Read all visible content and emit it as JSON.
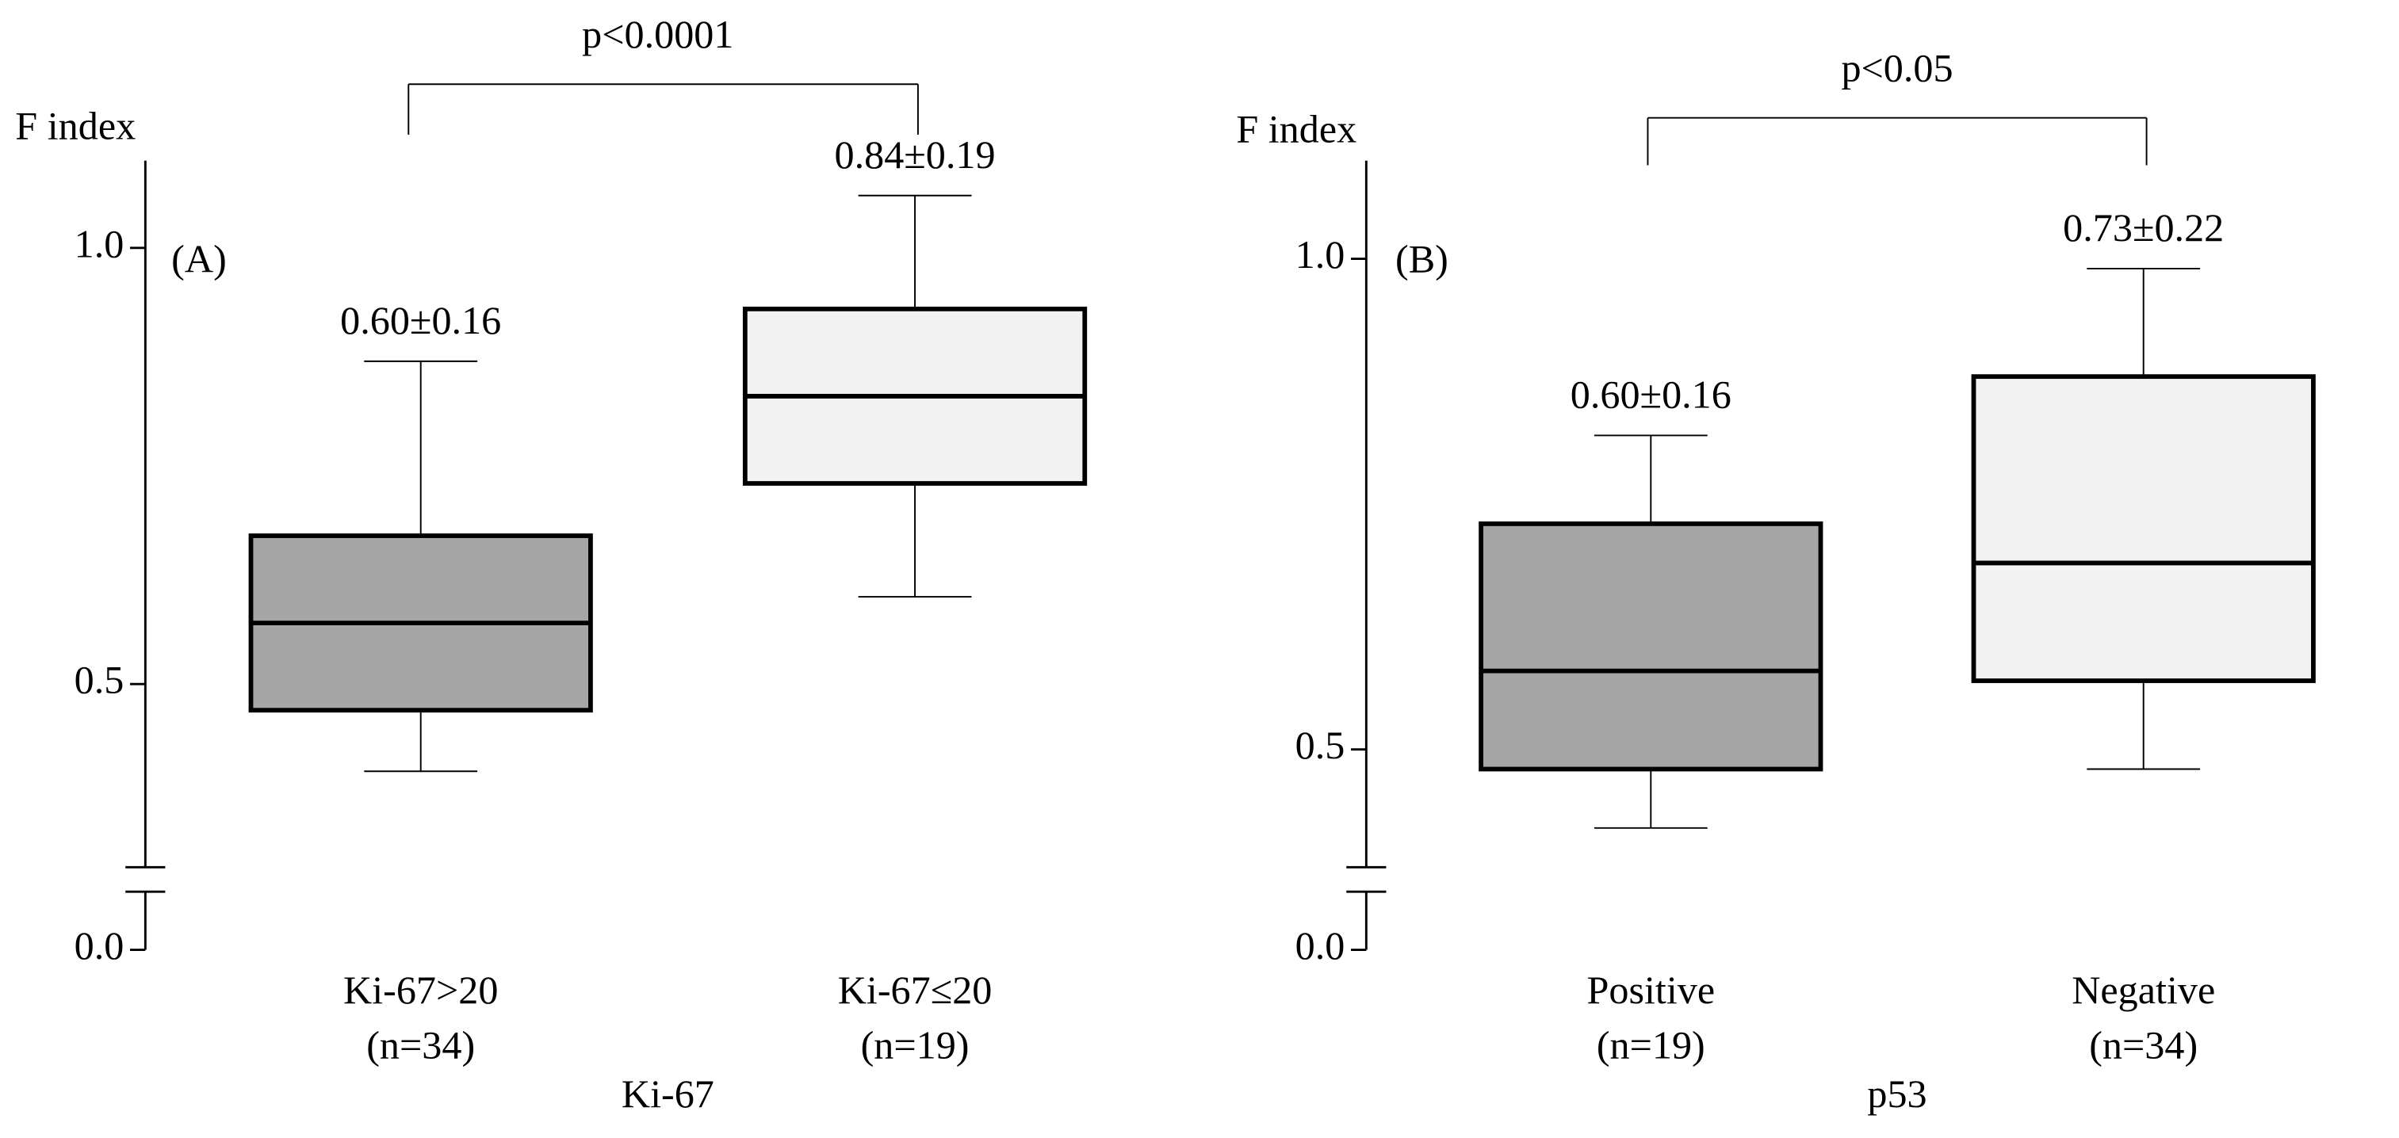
{
  "chart_data": [
    {
      "type": "box",
      "panel_label": "(A)",
      "y_label": "F index",
      "x_label": "Ki-67",
      "categories": [
        "Ki-67>20",
        "Ki-67≤20"
      ],
      "category_notes": [
        "(n=34)",
        "(n=19)"
      ],
      "boxes": [
        {
          "low": 0.4,
          "q1": 0.47,
          "median": 0.57,
          "q3": 0.67,
          "high": 0.87,
          "color": "#a6a6a6"
        },
        {
          "low": 0.6,
          "q1": 0.73,
          "median": 0.83,
          "q3": 0.93,
          "high": 1.06,
          "color": "#f2f2f2"
        }
      ],
      "summary_labels": [
        "0.60±0.16",
        "0.84±0.19"
      ],
      "comparison_label": "p<0.0001",
      "ylim": [
        0.29,
        1.1
      ],
      "yticks": [
        {
          "value": 0,
          "label": "0.0"
        },
        0.5,
        {
          "value": 1,
          "label": "1.0"
        }
      ],
      "axis_break": true
    },
    {
      "type": "box",
      "panel_label": "(B)",
      "y_label": "F index",
      "x_label": "p53",
      "categories": [
        "Positive",
        "Negative"
      ],
      "category_notes": [
        "(n=19)",
        "(n=34)"
      ],
      "boxes": [
        {
          "low": 0.42,
          "q1": 0.48,
          "median": 0.58,
          "q3": 0.73,
          "high": 0.82,
          "color": "#a6a6a6"
        },
        {
          "low": 0.48,
          "q1": 0.57,
          "median": 0.69,
          "q3": 0.88,
          "high": 0.99,
          "color": "#f2f2f2"
        }
      ],
      "summary_labels": [
        "0.60±0.16",
        "0.73±0.22"
      ],
      "comparison_label": "p<0.05",
      "ylim": [
        0.38,
        1.1
      ],
      "yticks": [
        {
          "value": 0,
          "label": "0.0"
        },
        0.5,
        {
          "value": 1,
          "label": "1.0"
        }
      ],
      "axis_break": true
    }
  ]
}
